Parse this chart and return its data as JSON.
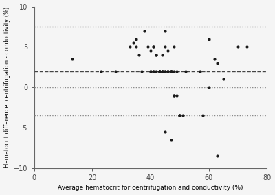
{
  "title": "",
  "xlabel": "Average hematocrit for centrifugation and conductivity (%)",
  "ylabel": "Hematocrit difference  centrifugation - conductivity (%)",
  "xlim": [
    0,
    80
  ],
  "ylim": [
    -10,
    10
  ],
  "xticks": [
    0,
    20,
    40,
    60,
    80
  ],
  "yticks": [
    -10,
    -5,
    0,
    5,
    10
  ],
  "mean_line": 2.0,
  "loa_upper": 7.5,
  "loa_lower": -3.5,
  "zero_line": 0.0,
  "scatter_x": [
    13,
    23,
    28,
    33,
    34,
    35,
    35,
    36,
    37,
    38,
    39,
    40,
    40,
    40,
    41,
    41,
    41,
    41,
    42,
    42,
    42,
    43,
    43,
    43,
    43,
    43,
    44,
    44,
    44,
    44,
    44,
    45,
    45,
    45,
    45,
    46,
    46,
    46,
    46,
    47,
    47,
    47,
    47,
    48,
    48,
    48,
    48,
    49,
    49,
    50,
    50,
    51,
    52,
    57,
    60,
    60,
    62,
    63,
    65,
    70,
    73
  ],
  "scatter_y": [
    3.5,
    2.0,
    2.0,
    5.0,
    5.5,
    5.0,
    6.0,
    4.0,
    2.0,
    7.0,
    5.0,
    2.0,
    4.5,
    2.0,
    5.0,
    5.0,
    2.0,
    2.0,
    2.0,
    4.0,
    4.0,
    2.0,
    2.0,
    2.0,
    2.0,
    2.0,
    2.0,
    2.0,
    2.0,
    4.0,
    2.0,
    2.0,
    5.0,
    7.0,
    2.0,
    2.0,
    4.5,
    2.0,
    2.0,
    2.0,
    2.0,
    2.0,
    2.0,
    -1.0,
    -1.0,
    2.0,
    5.0,
    2.0,
    -1.0,
    -3.5,
    -3.5,
    -3.5,
    2.0,
    2.0,
    0.0,
    6.0,
    3.5,
    3.0,
    1.0,
    5.0,
    5.0
  ],
  "extra_x": [
    45,
    47,
    50,
    58,
    63
  ],
  "extra_y": [
    -5.5,
    -6.5,
    -3.5,
    -3.5,
    -8.5
  ],
  "dot_color": "#1a1a1a",
  "dot_size": 9,
  "mean_line_color": "#444444",
  "loa_line_color": "#888888",
  "background_color": "#f5f5f5",
  "fig_width": 4.0,
  "fig_height": 2.84,
  "dpi": 100
}
